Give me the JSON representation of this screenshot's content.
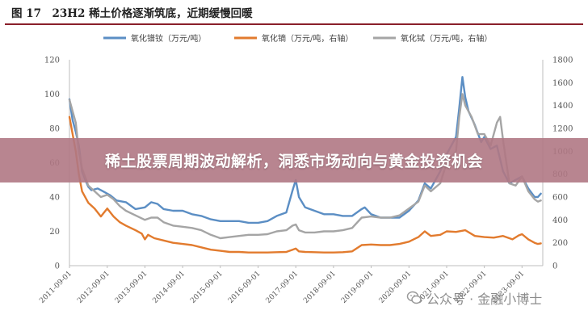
{
  "figure": {
    "title": "图 17　23H2 稀土价格逐渐筑底，近期缓慢回暖"
  },
  "banner": {
    "text": "稀土股票周期波动解析，洞悉市场动向与黄金投资机会"
  },
  "watermark": {
    "text": "公众号 · 金融小博士"
  },
  "chart_data": {
    "type": "line",
    "title": "",
    "xlabel": "",
    "ylabel": "",
    "y_left_range": [
      0,
      120
    ],
    "y_left_ticks": [
      "0",
      "20",
      "40",
      "60",
      "80",
      "100",
      "120"
    ],
    "y_right_range": [
      0,
      1800
    ],
    "y_right_ticks": [
      "0",
      "200",
      "400",
      "600",
      "800",
      "1000",
      "1200",
      "1400",
      "1600",
      "1800"
    ],
    "x_ticks": [
      "2011-09-01",
      "2012-09-01",
      "2013-09-01",
      "2014-09-01",
      "2015-09-01",
      "2016-09-01",
      "2017-09-01",
      "2018-09-01",
      "2019-09-01",
      "2020-09-01",
      "2021-09-01",
      "2022-09-01",
      "2023-09-01"
    ],
    "legend_position": "top",
    "grid": false,
    "series": [
      {
        "name": "氧化镨钕（万元/吨）",
        "axis": "left",
        "color": "#5b8ec4",
        "points": [
          [
            "2011-09-01",
            97
          ],
          [
            "2011-10-01",
            85
          ],
          [
            "2011-11-01",
            78
          ],
          [
            "2011-12-01",
            70
          ],
          [
            "2012-01-01",
            55
          ],
          [
            "2012-02-01",
            50
          ],
          [
            "2012-03-01",
            46
          ],
          [
            "2012-04-01",
            44
          ],
          [
            "2012-06-01",
            45
          ],
          [
            "2012-08-01",
            43
          ],
          [
            "2012-10-01",
            41
          ],
          [
            "2012-12-01",
            38
          ],
          [
            "2013-03-01",
            37
          ],
          [
            "2013-06-01",
            33
          ],
          [
            "2013-09-01",
            34
          ],
          [
            "2013-11-01",
            37
          ],
          [
            "2014-01-01",
            36
          ],
          [
            "2014-03-01",
            33
          ],
          [
            "2014-06-01",
            32
          ],
          [
            "2014-09-01",
            32
          ],
          [
            "2014-12-01",
            30
          ],
          [
            "2015-03-01",
            29
          ],
          [
            "2015-06-01",
            27
          ],
          [
            "2015-09-01",
            26
          ],
          [
            "2015-12-01",
            26
          ],
          [
            "2016-03-01",
            26
          ],
          [
            "2016-06-01",
            25
          ],
          [
            "2016-09-01",
            25
          ],
          [
            "2016-12-01",
            26
          ],
          [
            "2017-03-01",
            29
          ],
          [
            "2017-06-01",
            31
          ],
          [
            "2017-08-01",
            44
          ],
          [
            "2017-09-01",
            50
          ],
          [
            "2017-10-01",
            40
          ],
          [
            "2017-12-01",
            34
          ],
          [
            "2018-03-01",
            32
          ],
          [
            "2018-06-01",
            30
          ],
          [
            "2018-09-01",
            30
          ],
          [
            "2018-12-01",
            29
          ],
          [
            "2019-03-01",
            29
          ],
          [
            "2019-06-01",
            33
          ],
          [
            "2019-07-01",
            34
          ],
          [
            "2019-09-01",
            30
          ],
          [
            "2019-12-01",
            28
          ],
          [
            "2020-03-01",
            28
          ],
          [
            "2020-06-01",
            28
          ],
          [
            "2020-09-01",
            32
          ],
          [
            "2020-12-01",
            38
          ],
          [
            "2021-02-01",
            48
          ],
          [
            "2021-04-01",
            45
          ],
          [
            "2021-07-01",
            55
          ],
          [
            "2021-09-01",
            65
          ],
          [
            "2021-12-01",
            75
          ],
          [
            "2022-01-01",
            92
          ],
          [
            "2022-02-01",
            110
          ],
          [
            "2022-03-01",
            98
          ],
          [
            "2022-04-01",
            90
          ],
          [
            "2022-06-01",
            82
          ],
          [
            "2022-08-01",
            72
          ],
          [
            "2022-09-01",
            75
          ],
          [
            "2022-11-01",
            68
          ],
          [
            "2023-01-01",
            70
          ],
          [
            "2023-03-01",
            55
          ],
          [
            "2023-05-01",
            48
          ],
          [
            "2023-07-01",
            50
          ],
          [
            "2023-09-01",
            52
          ],
          [
            "2023-11-01",
            45
          ],
          [
            "2024-01-01",
            40
          ],
          [
            "2024-02-01",
            40
          ],
          [
            "2024-03-01",
            42
          ]
        ]
      },
      {
        "name": "氧化镝（万元/吨，右轴）",
        "axis": "right",
        "color": "#e27b2e",
        "points": [
          [
            "2011-09-01",
            1300
          ],
          [
            "2011-11-01",
            1000
          ],
          [
            "2011-12-01",
            800
          ],
          [
            "2012-01-01",
            650
          ],
          [
            "2012-03-01",
            550
          ],
          [
            "2012-05-01",
            500
          ],
          [
            "2012-07-01",
            430
          ],
          [
            "2012-09-01",
            500
          ],
          [
            "2012-11-01",
            430
          ],
          [
            "2013-01-01",
            380
          ],
          [
            "2013-03-01",
            350
          ],
          [
            "2013-06-01",
            310
          ],
          [
            "2013-08-01",
            280
          ],
          [
            "2013-09-01",
            230
          ],
          [
            "2013-10-01",
            270
          ],
          [
            "2013-12-01",
            240
          ],
          [
            "2014-03-01",
            220
          ],
          [
            "2014-06-01",
            200
          ],
          [
            "2014-09-01",
            190
          ],
          [
            "2014-12-01",
            180
          ],
          [
            "2015-03-01",
            160
          ],
          [
            "2015-06-01",
            140
          ],
          [
            "2015-09-01",
            130
          ],
          [
            "2015-12-01",
            120
          ],
          [
            "2016-03-01",
            120
          ],
          [
            "2016-06-01",
            115
          ],
          [
            "2016-09-01",
            115
          ],
          [
            "2016-12-01",
            115
          ],
          [
            "2017-03-01",
            118
          ],
          [
            "2017-06-01",
            120
          ],
          [
            "2017-08-01",
            140
          ],
          [
            "2017-09-01",
            150
          ],
          [
            "2017-10-01",
            125
          ],
          [
            "2017-12-01",
            120
          ],
          [
            "2018-03-01",
            118
          ],
          [
            "2018-06-01",
            115
          ],
          [
            "2018-09-01",
            115
          ],
          [
            "2018-12-01",
            118
          ],
          [
            "2019-03-01",
            125
          ],
          [
            "2019-06-01",
            180
          ],
          [
            "2019-09-01",
            185
          ],
          [
            "2019-12-01",
            180
          ],
          [
            "2020-03-01",
            180
          ],
          [
            "2020-06-01",
            190
          ],
          [
            "2020-09-01",
            210
          ],
          [
            "2020-12-01",
            250
          ],
          [
            "2021-02-01",
            300
          ],
          [
            "2021-04-01",
            260
          ],
          [
            "2021-07-01",
            270
          ],
          [
            "2021-09-01",
            300
          ],
          [
            "2021-12-01",
            295
          ],
          [
            "2022-03-01",
            310
          ],
          [
            "2022-06-01",
            260
          ],
          [
            "2022-09-01",
            250
          ],
          [
            "2022-12-01",
            245
          ],
          [
            "2023-03-01",
            260
          ],
          [
            "2023-06-01",
            230
          ],
          [
            "2023-08-01",
            265
          ],
          [
            "2023-09-01",
            275
          ],
          [
            "2023-11-01",
            230
          ],
          [
            "2024-01-01",
            200
          ],
          [
            "2024-02-01",
            190
          ],
          [
            "2024-03-01",
            195
          ]
        ]
      },
      {
        "name": "氧化铽（万元/吨，右轴）",
        "axis": "right",
        "color": "#a5a5a5",
        "points": [
          [
            "2011-09-01",
            1450
          ],
          [
            "2011-11-01",
            1250
          ],
          [
            "2011-12-01",
            1000
          ],
          [
            "2012-01-01",
            850
          ],
          [
            "2012-03-01",
            700
          ],
          [
            "2012-05-01",
            650
          ],
          [
            "2012-07-01",
            600
          ],
          [
            "2012-09-01",
            620
          ],
          [
            "2012-11-01",
            580
          ],
          [
            "2013-01-01",
            520
          ],
          [
            "2013-03-01",
            480
          ],
          [
            "2013-06-01",
            440
          ],
          [
            "2013-09-01",
            400
          ],
          [
            "2013-11-01",
            420
          ],
          [
            "2014-01-01",
            420
          ],
          [
            "2014-03-01",
            380
          ],
          [
            "2014-06-01",
            350
          ],
          [
            "2014-09-01",
            340
          ],
          [
            "2014-12-01",
            330
          ],
          [
            "2015-03-01",
            310
          ],
          [
            "2015-06-01",
            270
          ],
          [
            "2015-09-01",
            240
          ],
          [
            "2015-12-01",
            250
          ],
          [
            "2016-03-01",
            260
          ],
          [
            "2016-06-01",
            270
          ],
          [
            "2016-09-01",
            270
          ],
          [
            "2016-12-01",
            275
          ],
          [
            "2017-03-01",
            300
          ],
          [
            "2017-06-01",
            310
          ],
          [
            "2017-08-01",
            350
          ],
          [
            "2017-09-01",
            360
          ],
          [
            "2017-10-01",
            310
          ],
          [
            "2017-12-01",
            290
          ],
          [
            "2018-03-01",
            290
          ],
          [
            "2018-06-01",
            300
          ],
          [
            "2018-09-01",
            300
          ],
          [
            "2018-12-01",
            310
          ],
          [
            "2019-03-01",
            330
          ],
          [
            "2019-06-01",
            420
          ],
          [
            "2019-09-01",
            430
          ],
          [
            "2019-12-01",
            420
          ],
          [
            "2020-03-01",
            420
          ],
          [
            "2020-06-01",
            440
          ],
          [
            "2020-09-01",
            500
          ],
          [
            "2020-12-01",
            560
          ],
          [
            "2021-02-01",
            700
          ],
          [
            "2021-04-01",
            650
          ],
          [
            "2021-07-01",
            720
          ],
          [
            "2021-09-01",
            900
          ],
          [
            "2021-12-01",
            1000
          ],
          [
            "2022-01-01",
            1300
          ],
          [
            "2022-02-01",
            1500
          ],
          [
            "2022-03-01",
            1400
          ],
          [
            "2022-05-01",
            1300
          ],
          [
            "2022-07-01",
            1150
          ],
          [
            "2022-09-01",
            1150
          ],
          [
            "2022-11-01",
            1050
          ],
          [
            "2023-01-01",
            1250
          ],
          [
            "2023-02-01",
            1300
          ],
          [
            "2023-03-01",
            1100
          ],
          [
            "2023-05-01",
            720
          ],
          [
            "2023-07-01",
            700
          ],
          [
            "2023-09-01",
            780
          ],
          [
            "2023-11-01",
            650
          ],
          [
            "2024-01-01",
            580
          ],
          [
            "2024-02-01",
            560
          ],
          [
            "2024-03-01",
            570
          ]
        ]
      }
    ]
  }
}
